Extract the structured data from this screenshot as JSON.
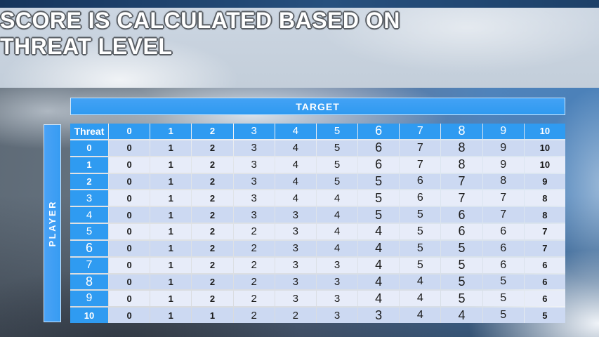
{
  "slide": {
    "title_line1": "SCORE IS CALCULATED BASED ON",
    "title_line2": "THREAT LEVEL",
    "title_full": "SCORE IS CALCULATED BASED ON THREAT LEVEL"
  },
  "matrix": {
    "target_label": "TARGET",
    "player_label": "PLAYER",
    "corner_label": "Threat",
    "column_headers": [
      "0",
      "1",
      "2",
      "3",
      "4",
      "5",
      "6",
      "7",
      "8",
      "9",
      "10"
    ],
    "rows": [
      {
        "label": "0",
        "values": [
          0,
          1,
          2,
          3,
          4,
          5,
          6,
          7,
          8,
          9,
          10
        ]
      },
      {
        "label": "1",
        "values": [
          0,
          1,
          2,
          3,
          4,
          5,
          6,
          7,
          8,
          9,
          10
        ]
      },
      {
        "label": "2",
        "values": [
          0,
          1,
          2,
          3,
          4,
          5,
          5,
          6,
          7,
          8,
          9
        ]
      },
      {
        "label": "3",
        "values": [
          0,
          1,
          2,
          3,
          4,
          4,
          5,
          6,
          7,
          7,
          8
        ]
      },
      {
        "label": "4",
        "values": [
          0,
          1,
          2,
          3,
          3,
          4,
          5,
          5,
          6,
          7,
          8
        ]
      },
      {
        "label": "5",
        "values": [
          0,
          1,
          2,
          2,
          3,
          4,
          4,
          5,
          6,
          6,
          7
        ]
      },
      {
        "label": "6",
        "values": [
          0,
          1,
          2,
          2,
          3,
          4,
          4,
          5,
          5,
          6,
          7
        ]
      },
      {
        "label": "7",
        "values": [
          0,
          1,
          2,
          2,
          3,
          3,
          4,
          5,
          5,
          6,
          6
        ]
      },
      {
        "label": "8",
        "values": [
          0,
          1,
          2,
          2,
          3,
          3,
          4,
          4,
          5,
          5,
          6
        ]
      },
      {
        "label": "9",
        "values": [
          0,
          1,
          2,
          2,
          3,
          3,
          4,
          4,
          5,
          5,
          6
        ]
      },
      {
        "label": "10",
        "values": [
          0,
          1,
          1,
          2,
          2,
          3,
          3,
          4,
          4,
          5,
          5
        ]
      }
    ]
  },
  "colors": {
    "header_blue": "#2f9bf1",
    "bar_blue": "#43a2f5",
    "row_stripe_dark": "#ccd9f2",
    "row_stripe_light": "#e7ecf9",
    "top_strip_navy": "#1c3c63",
    "title_band": "#c7d2dd",
    "title_text": "#ffffff",
    "title_outline": "#585d63",
    "cell_text": "#1b1b1b"
  }
}
